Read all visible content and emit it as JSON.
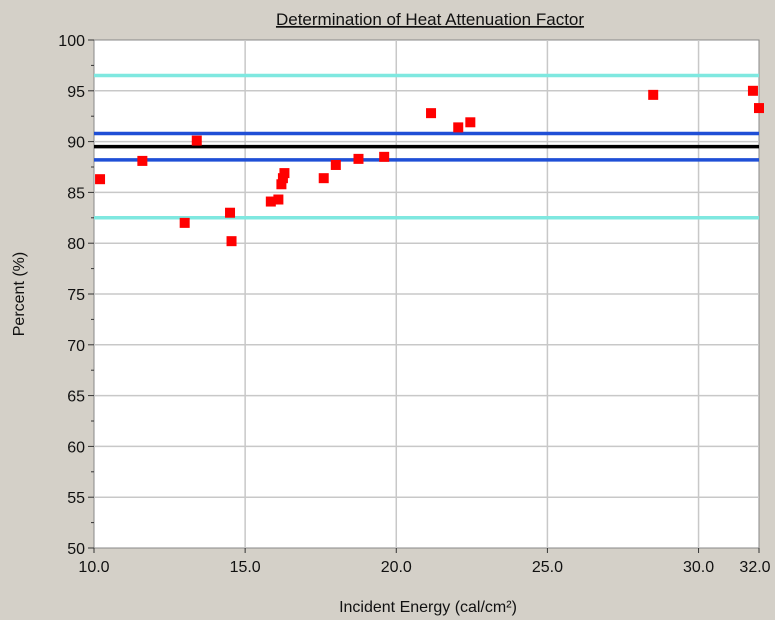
{
  "chart_data": {
    "type": "scatter",
    "title": "Determination of Heat Attenuation Factor",
    "xlabel": "Incident Energy (cal/cm²)",
    "ylabel": "Percent (%)",
    "xlim": [
      10.0,
      32.0
    ],
    "ylim": [
      50,
      100
    ],
    "x_ticks": [
      "10.0",
      "15.0",
      "20.0",
      "25.0",
      "30.0",
      "32.0"
    ],
    "x_tick_values": [
      10,
      15,
      20,
      25,
      30,
      32
    ],
    "y_ticks": [
      "100",
      "95",
      "90",
      "85",
      "80",
      "75",
      "70",
      "65",
      "60",
      "55",
      "50"
    ],
    "y_tick_values": [
      100,
      95,
      90,
      85,
      80,
      75,
      70,
      65,
      60,
      55,
      50
    ],
    "grid": true,
    "reference_lines": [
      {
        "y": 96.5,
        "color": "#7fe8e0"
      },
      {
        "y": 90.8,
        "color": "#1f4fd6"
      },
      {
        "y": 89.5,
        "color": "#000000"
      },
      {
        "y": 88.2,
        "color": "#1f4fd6"
      },
      {
        "y": 82.5,
        "color": "#7fe8e0"
      }
    ],
    "series": [
      {
        "color": "#ff0000",
        "marker": "square",
        "points": [
          [
            10.2,
            86.3
          ],
          [
            11.6,
            88.1
          ],
          [
            13.0,
            82.0
          ],
          [
            13.4,
            90.1
          ],
          [
            14.5,
            83.0
          ],
          [
            14.55,
            80.2
          ],
          [
            15.85,
            84.1
          ],
          [
            16.1,
            84.3
          ],
          [
            16.2,
            85.8
          ],
          [
            16.25,
            86.4
          ],
          [
            16.3,
            86.9
          ],
          [
            17.6,
            86.4
          ],
          [
            18.0,
            87.7
          ],
          [
            18.75,
            88.3
          ],
          [
            19.6,
            88.5
          ],
          [
            21.15,
            92.8
          ],
          [
            22.05,
            91.4
          ],
          [
            22.45,
            91.9
          ],
          [
            28.5,
            94.6
          ],
          [
            31.8,
            95.0
          ],
          [
            32.0,
            93.3
          ]
        ]
      }
    ]
  }
}
